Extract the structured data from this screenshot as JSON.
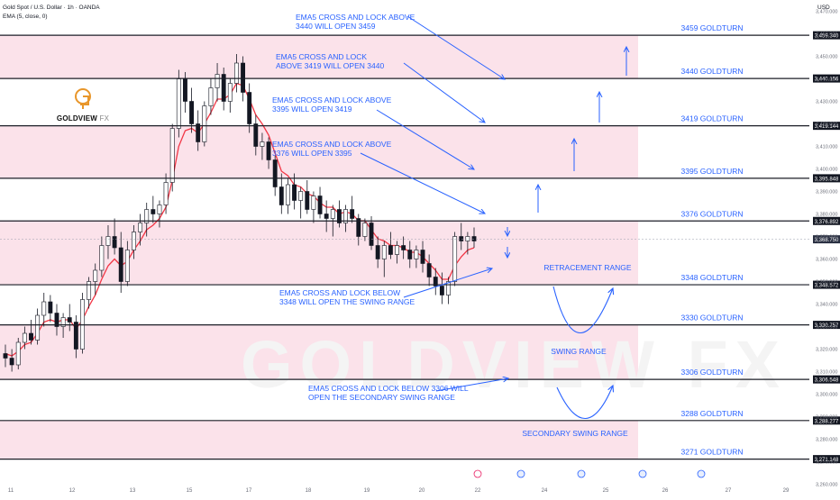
{
  "header": {
    "symbol_line": "Gold Spot / U.S. Dollar · 1h · OANDA",
    "indicator_line": "EMA (5, close, 0)",
    "currency": "USD"
  },
  "logo": {
    "brand": "GOLDVIEW",
    "suffix": "FX",
    "watermark": "GOLDVIEW FX"
  },
  "colors": {
    "zone": "#fbe2ea",
    "level_line": "#1b1e27",
    "annotation": "#2962ff",
    "candle_up": "#131722",
    "candle_down": "#131722",
    "ema": "#f23645",
    "price_badge": "#131722",
    "current_badge": "#2a3042"
  },
  "chart_data": {
    "type": "candlestick",
    "title": "Gold Spot / U.S. Dollar · 1h · OANDA",
    "ylim": [
      3255,
      3475
    ],
    "yticks": [
      3260,
      3270,
      3280,
      3290,
      3300,
      3310,
      3320,
      3330,
      3340,
      3350,
      3360,
      3370,
      3380,
      3390,
      3400,
      3410,
      3420,
      3430,
      3440,
      3450,
      3460,
      3470
    ],
    "x_ticks": [
      "11",
      "12",
      "13",
      "15",
      "17",
      "18",
      "19",
      "20",
      "22",
      "24",
      "25",
      "26",
      "27",
      "29"
    ],
    "current_price": 3368.75,
    "levels": [
      {
        "value": 3459.34,
        "tag": "3,459.340",
        "label": "3459 GOLDTURN"
      },
      {
        "value": 3440.156,
        "tag": "3,440.156",
        "label": "3440 GOLDTURN"
      },
      {
        "value": 3419.144,
        "tag": "3,419.144",
        "label": "3419 GOLDTURN"
      },
      {
        "value": 3395.848,
        "tag": "3,395.848",
        "label": "3395 GOLDTURN"
      },
      {
        "value": 3376.892,
        "tag": "3,376.892",
        "label": "3376 GOLDTURN"
      },
      {
        "value": 3348.572,
        "tag": "3,348.572",
        "label": "3348 GOLDTURN"
      },
      {
        "value": 3330.757,
        "tag": "3,330.757",
        "label": "3330 GOLDTURN"
      },
      {
        "value": 3306.548,
        "tag": "3,306.548",
        "label": "3306 GOLDTURN"
      },
      {
        "value": 3288.277,
        "tag": "3,288.277",
        "label": "3288 GOLDTURN"
      },
      {
        "value": 3271.148,
        "tag": "3,271.148",
        "label": "3271 GOLDTURN"
      }
    ],
    "current_tag": "3,368.750",
    "annotations": [
      {
        "lines": [
          "EMA5 CROSS AND LOCK ABOVE",
          "3440 WILL OPEN 3459"
        ]
      },
      {
        "lines": [
          "EMA5 CROSS AND LOCK",
          "ABOVE 3419 WILL OPEN 3440"
        ]
      },
      {
        "lines": [
          "EMA5 CROSS AND LOCK ABOVE",
          "3395 WILL OPEN 3419"
        ]
      },
      {
        "lines": [
          "EMA5 CROSS AND LOCK ABOVE",
          "3376 WILL OPEN 3395"
        ]
      },
      {
        "lines": [
          "EMA5 CROSS AND LOCK BELOW",
          "3348 WILL OPEN THE SWING RANGE"
        ]
      },
      {
        "lines": [
          "EMA5 CROSS AND LOCK BELOW 3306 WILL",
          "OPEN THE SECONDARY SWING RANGE"
        ]
      }
    ],
    "range_labels": [
      "RETRACEMENT RANGE",
      "SWING RANGE",
      "SECONDARY SWING RANGE"
    ],
    "candles": [
      [
        3318,
        3322,
        3312,
        3316
      ],
      [
        3316,
        3320,
        3310,
        3313
      ],
      [
        3313,
        3325,
        3311,
        3323
      ],
      [
        3323,
        3330,
        3320,
        3327
      ],
      [
        3327,
        3333,
        3322,
        3324
      ],
      [
        3324,
        3338,
        3322,
        3335
      ],
      [
        3335,
        3345,
        3330,
        3341
      ],
      [
        3341,
        3344,
        3332,
        3336
      ],
      [
        3336,
        3340,
        3326,
        3330
      ],
      [
        3330,
        3336,
        3325,
        3334
      ],
      [
        3334,
        3340,
        3328,
        3332
      ],
      [
        3332,
        3335,
        3316,
        3320
      ],
      [
        3320,
        3345,
        3318,
        3342
      ],
      [
        3342,
        3352,
        3338,
        3350
      ],
      [
        3350,
        3358,
        3344,
        3355
      ],
      [
        3355,
        3370,
        3352,
        3366
      ],
      [
        3366,
        3375,
        3360,
        3370
      ],
      [
        3370,
        3378,
        3362,
        3365
      ],
      [
        3365,
        3372,
        3345,
        3350
      ],
      [
        3350,
        3368,
        3348,
        3364
      ],
      [
        3364,
        3375,
        3360,
        3372
      ],
      [
        3372,
        3380,
        3366,
        3376
      ],
      [
        3376,
        3385,
        3370,
        3382
      ],
      [
        3382,
        3388,
        3376,
        3380
      ],
      [
        3380,
        3386,
        3374,
        3384
      ],
      [
        3384,
        3398,
        3380,
        3394
      ],
      [
        3394,
        3420,
        3390,
        3418
      ],
      [
        3418,
        3444,
        3414,
        3440
      ],
      [
        3440,
        3443,
        3425,
        3430
      ],
      [
        3430,
        3436,
        3416,
        3420
      ],
      [
        3420,
        3426,
        3408,
        3412
      ],
      [
        3412,
        3430,
        3410,
        3428
      ],
      [
        3428,
        3440,
        3424,
        3436
      ],
      [
        3436,
        3447,
        3430,
        3442
      ],
      [
        3442,
        3445,
        3426,
        3430
      ],
      [
        3430,
        3440,
        3425,
        3438
      ],
      [
        3438,
        3451,
        3434,
        3447
      ],
      [
        3447,
        3450,
        3430,
        3434
      ],
      [
        3434,
        3438,
        3416,
        3420
      ],
      [
        3420,
        3424,
        3406,
        3410
      ],
      [
        3410,
        3416,
        3404,
        3412
      ],
      [
        3412,
        3414,
        3400,
        3404
      ],
      [
        3404,
        3406,
        3388,
        3392
      ],
      [
        3392,
        3398,
        3380,
        3384
      ],
      [
        3384,
        3396,
        3380,
        3393
      ],
      [
        3393,
        3398,
        3382,
        3386
      ],
      [
        3386,
        3392,
        3378,
        3390
      ],
      [
        3390,
        3395,
        3380,
        3382
      ],
      [
        3382,
        3390,
        3376,
        3388
      ],
      [
        3388,
        3392,
        3378,
        3380
      ],
      [
        3380,
        3386,
        3372,
        3378
      ],
      [
        3378,
        3384,
        3370,
        3382
      ],
      [
        3382,
        3386,
        3374,
        3376
      ],
      [
        3376,
        3384,
        3372,
        3382
      ],
      [
        3382,
        3388,
        3376,
        3378
      ],
      [
        3378,
        3380,
        3366,
        3370
      ],
      [
        3370,
        3378,
        3368,
        3376
      ],
      [
        3376,
        3379,
        3364,
        3366
      ],
      [
        3366,
        3370,
        3356,
        3360
      ],
      [
        3360,
        3368,
        3352,
        3366
      ],
      [
        3366,
        3372,
        3360,
        3362
      ],
      [
        3362,
        3368,
        3358,
        3366
      ],
      [
        3366,
        3370,
        3360,
        3364
      ],
      [
        3364,
        3368,
        3356,
        3360
      ],
      [
        3360,
        3366,
        3356,
        3364
      ],
      [
        3364,
        3368,
        3354,
        3358
      ],
      [
        3358,
        3362,
        3348,
        3352
      ],
      [
        3352,
        3356,
        3344,
        3348
      ],
      [
        3348,
        3354,
        3340,
        3344
      ],
      [
        3344,
        3352,
        3340,
        3350
      ],
      [
        3350,
        3372,
        3348,
        3370
      ],
      [
        3370,
        3376,
        3364,
        3368
      ],
      [
        3368,
        3372,
        3362,
        3370
      ],
      [
        3370,
        3374,
        3365,
        3368
      ]
    ],
    "ema5": [
      3318,
      3317,
      3319,
      3322,
      3323,
      3327,
      3332,
      3333,
      3332,
      3333,
      3333,
      3329,
      3333,
      3339,
      3344,
      3351,
      3357,
      3360,
      3357,
      3359,
      3364,
      3368,
      3373,
      3375,
      3378,
      3383,
      3395,
      3410,
      3417,
      3418,
      3416,
      3420,
      3425,
      3431,
      3431,
      3433,
      3438,
      3437,
      3431,
      3424,
      3420,
      3415,
      3407,
      3399,
      3397,
      3393,
      3392,
      3389,
      3388,
      3385,
      3383,
      3383,
      3380,
      3381,
      3380,
      3377,
      3377,
      3373,
      3369,
      3368,
      3366,
      3366,
      3365,
      3363,
      3363,
      3361,
      3358,
      3355,
      3351,
      3351,
      3357,
      3361,
      3364,
      3365
    ]
  }
}
